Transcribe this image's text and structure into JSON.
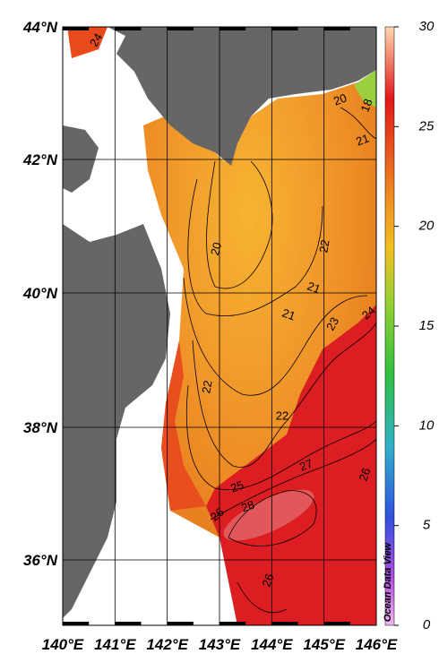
{
  "map": {
    "lat_labels": [
      "44°N",
      "42°N",
      "40°N",
      "38°N",
      "36°N"
    ],
    "lon_labels": [
      "140°E",
      "141°E",
      "142°E",
      "143°E",
      "144°E",
      "145°E",
      "146°E"
    ],
    "colorbar": {
      "range": [
        0,
        30
      ],
      "ticks": [
        0,
        5,
        10,
        15,
        20,
        25,
        30
      ]
    },
    "contour_labels": [
      "24",
      "20",
      "18",
      "21",
      "20",
      "22",
      "21",
      "21",
      "23",
      "24",
      "22",
      "22",
      "27",
      "25",
      "26",
      "28",
      "26",
      "26"
    ],
    "credit": "Ocean Data View"
  }
}
